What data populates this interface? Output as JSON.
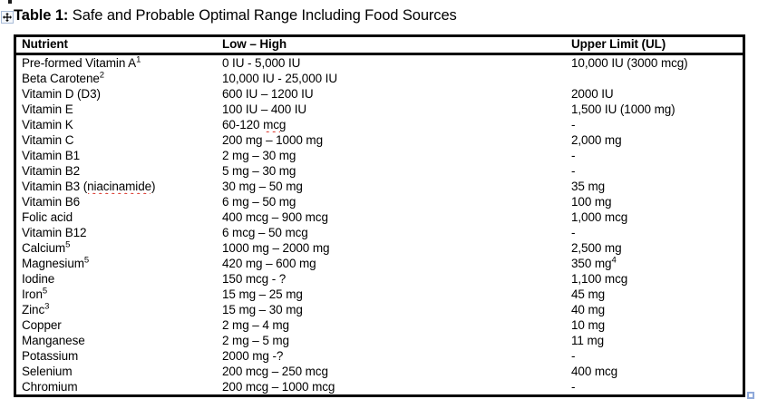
{
  "title": {
    "label_bold": "Table 1:",
    "label_rest": " Safe and Probable Optimal Range Including Food Sources"
  },
  "icons": {
    "move_handle": "move-icon",
    "resize_handle": "resize-handle-square"
  },
  "colors": {
    "text": "#000000",
    "table_border": "#000000",
    "spellcheck_squiggle": "#d93025",
    "handle_border": "#8fa9da",
    "background": "#ffffff"
  },
  "table": {
    "headers": [
      "Nutrient",
      "Low – High",
      "Upper Limit (UL)"
    ],
    "rows": [
      {
        "nutrient": "Pre-formed Vitamin A",
        "nutrient_misspelled": "",
        "nutrient_sup": "1",
        "low_high": "0 IU - 5,000 IU",
        "low_misspelled": "",
        "upper_limit": "10,000 IU (3000 mcg)",
        "upper_limit_sup": ""
      },
      {
        "nutrient": "Beta Carotene",
        "nutrient_misspelled": "",
        "nutrient_sup": "2",
        "low_high": "10,000 IU - 25,000 IU",
        "low_misspelled": "",
        "upper_limit": "",
        "upper_limit_sup": ""
      },
      {
        "nutrient": "Vitamin D (D3)",
        "nutrient_misspelled": "",
        "nutrient_sup": "",
        "low_high": "600 IU – 1200 IU",
        "low_misspelled": "",
        "upper_limit": "2000 IU",
        "upper_limit_sup": ""
      },
      {
        "nutrient": "Vitamin E",
        "nutrient_misspelled": "",
        "nutrient_sup": "",
        "low_high": "100 IU – 400 IU",
        "low_misspelled": "",
        "upper_limit": "1,500 IU (1000 mg)",
        "upper_limit_sup": ""
      },
      {
        "nutrient": "Vitamin K",
        "nutrient_misspelled": "",
        "nutrient_sup": "",
        "low_high": "60-120 ",
        "low_misspelled": "mcg",
        "upper_limit": "-",
        "upper_limit_sup": ""
      },
      {
        "nutrient": "Vitamin C",
        "nutrient_misspelled": "",
        "nutrient_sup": "",
        "low_high": "200 mg – 1000 mg",
        "low_misspelled": "",
        "upper_limit": "2,000 mg",
        "upper_limit_sup": ""
      },
      {
        "nutrient": "Vitamin B1",
        "nutrient_misspelled": "",
        "nutrient_sup": "",
        "low_high": "2 mg – 30 mg",
        "low_misspelled": "",
        "upper_limit": "-",
        "upper_limit_sup": ""
      },
      {
        "nutrient": "Vitamin B2",
        "nutrient_misspelled": "",
        "nutrient_sup": "",
        "low_high": "5 mg – 30 mg",
        "low_misspelled": "",
        "upper_limit": "-",
        "upper_limit_sup": ""
      },
      {
        "nutrient": "Vitamin B3 ",
        "nutrient_misspelled": "(niacinamide)",
        "nutrient_sup": "",
        "low_high": "30 mg – 50 mg",
        "low_misspelled": "",
        "upper_limit": "35 mg",
        "upper_limit_sup": ""
      },
      {
        "nutrient": "Vitamin B6",
        "nutrient_misspelled": "",
        "nutrient_sup": "",
        "low_high": "6 mg – 50 mg",
        "low_misspelled": "",
        "upper_limit": "100 mg",
        "upper_limit_sup": ""
      },
      {
        "nutrient": "Folic acid",
        "nutrient_misspelled": "",
        "nutrient_sup": "",
        "low_high": "400 mcg – 900 mcg",
        "low_misspelled": "",
        "upper_limit": "1,000 mcg",
        "upper_limit_sup": ""
      },
      {
        "nutrient": "Vitamin B12",
        "nutrient_misspelled": "",
        "nutrient_sup": "",
        "low_high": "6 mcg – 50 mcg",
        "low_misspelled": "",
        "upper_limit": "-",
        "upper_limit_sup": ""
      },
      {
        "nutrient": "Calcium",
        "nutrient_misspelled": "",
        "nutrient_sup": "5",
        "low_high": "1000 mg – 2000 mg",
        "low_misspelled": "",
        "upper_limit": "2,500 mg",
        "upper_limit_sup": ""
      },
      {
        "nutrient": "Magnesium",
        "nutrient_misspelled": "",
        "nutrient_sup": "5",
        "low_high": "420 mg – 600 mg",
        "low_misspelled": "",
        "upper_limit": "350 mg",
        "upper_limit_sup": "4"
      },
      {
        "nutrient": "Iodine",
        "nutrient_misspelled": "",
        "nutrient_sup": "",
        "low_high": "150 mcg - ?",
        "low_misspelled": "",
        "upper_limit": "1,100 mcg",
        "upper_limit_sup": ""
      },
      {
        "nutrient": "Iron",
        "nutrient_misspelled": "",
        "nutrient_sup": "5",
        "low_high": "15 mg – 25 mg",
        "low_misspelled": "",
        "upper_limit": "45 mg",
        "upper_limit_sup": ""
      },
      {
        "nutrient": "Zinc",
        "nutrient_misspelled": "",
        "nutrient_sup": "3",
        "low_high": "15 mg – 30 mg",
        "low_misspelled": "",
        "upper_limit": "40 mg",
        "upper_limit_sup": ""
      },
      {
        "nutrient": "Copper",
        "nutrient_misspelled": "",
        "nutrient_sup": "",
        "low_high": "2 mg – 4 mg",
        "low_misspelled": "",
        "upper_limit": "10 mg",
        "upper_limit_sup": ""
      },
      {
        "nutrient": "Manganese",
        "nutrient_misspelled": "",
        "nutrient_sup": "",
        "low_high": "2 mg – 5 mg",
        "low_misspelled": "",
        "upper_limit": "11 mg",
        "upper_limit_sup": ""
      },
      {
        "nutrient": "Potassium",
        "nutrient_misspelled": "",
        "nutrient_sup": "",
        "low_high": "2000 mg -?",
        "low_misspelled": "",
        "upper_limit": "-",
        "upper_limit_sup": ""
      },
      {
        "nutrient": "Selenium",
        "nutrient_misspelled": "",
        "nutrient_sup": "",
        "low_high": "200 mcg – 250 mcg",
        "low_misspelled": "",
        "upper_limit": "400 mcg",
        "upper_limit_sup": ""
      },
      {
        "nutrient": "Chromium",
        "nutrient_misspelled": "",
        "nutrient_sup": "",
        "low_high": "200 mcg – 1000 mcg",
        "low_misspelled": "",
        "upper_limit": "-",
        "upper_limit_sup": ""
      }
    ]
  }
}
